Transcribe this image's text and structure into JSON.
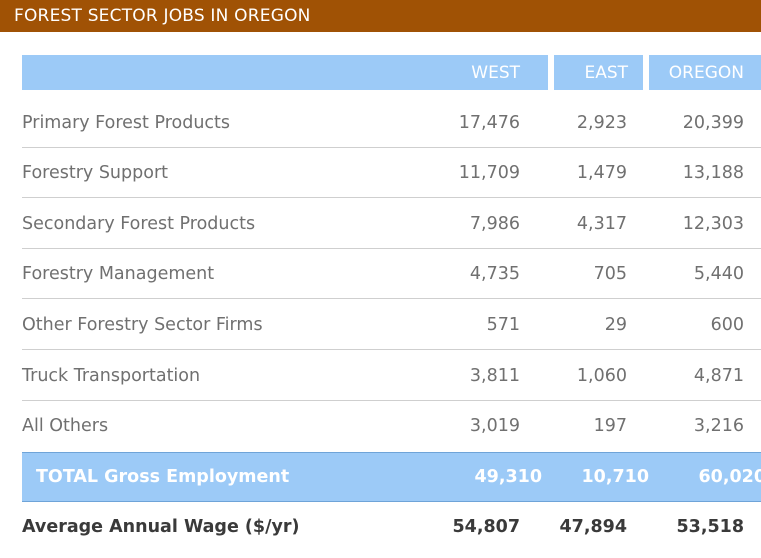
{
  "title": "FOREST SECTOR JOBS IN OREGON",
  "columns": [
    "WEST",
    "EAST",
    "OREGON"
  ],
  "rows": [
    {
      "label": "Primary Forest Products",
      "west": "17,476",
      "east": "2,923",
      "oregon": "20,399"
    },
    {
      "label": "Forestry Support",
      "west": "11,709",
      "east": "1,479",
      "oregon": "13,188"
    },
    {
      "label": "Secondary Forest Products",
      "west": "7,986",
      "east": "4,317",
      "oregon": "12,303"
    },
    {
      "label": "Forestry Management",
      "west": "4,735",
      "east": "705",
      "oregon": "5,440"
    },
    {
      "label": "Other Forestry Sector Firms",
      "west": "571",
      "east": "29",
      "oregon": "600"
    },
    {
      "label": "Truck Transportation",
      "west": "3,811",
      "east": "1,060",
      "oregon": "4,871"
    },
    {
      "label": "All Others",
      "west": "3,019",
      "east": "197",
      "oregon": "3,216"
    }
  ],
  "total": {
    "label": "TOTAL Gross Employment",
    "west": "49,310",
    "east": "10,710",
    "oregon": "60,020"
  },
  "wage": {
    "label": "Average Annual Wage ($/yr)",
    "west": "54,807",
    "east": "47,894",
    "oregon": "53,518"
  },
  "colors": {
    "banner": "#a05205",
    "header": "#9ccaf7",
    "body_text": "#707070"
  }
}
